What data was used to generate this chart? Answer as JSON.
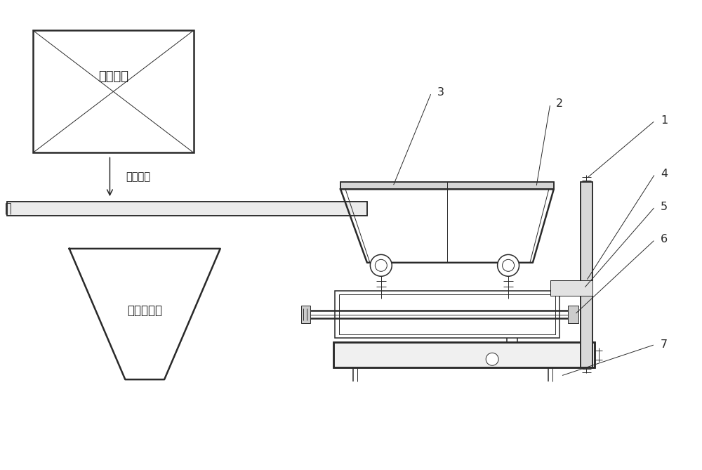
{
  "bg_color": "#ffffff",
  "line_color": "#2a2a2a",
  "text_color": "#1a1a1a",
  "label_box": "压滤设备",
  "label_arrow": "排固相物",
  "label_bin": "固相物料仓",
  "part_labels": [
    "1",
    "2",
    "3",
    "4",
    "5",
    "6",
    "7"
  ],
  "figsize": [
    10.0,
    6.69
  ],
  "dpi": 100
}
